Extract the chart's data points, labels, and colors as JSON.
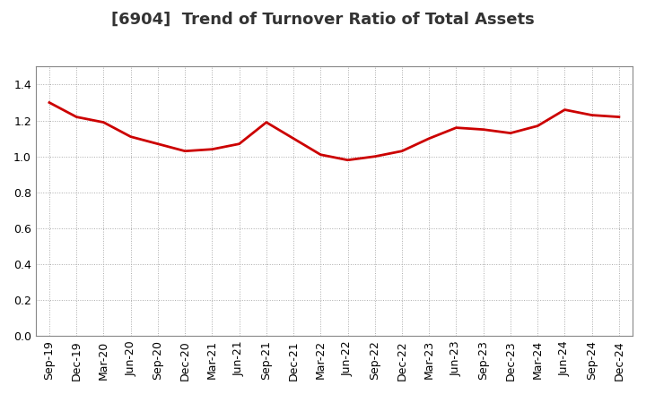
{
  "title": "[6904]  Trend of Turnover Ratio of Total Assets",
  "x_labels": [
    "Sep-19",
    "Dec-19",
    "Mar-20",
    "Jun-20",
    "Sep-20",
    "Dec-20",
    "Mar-21",
    "Jun-21",
    "Sep-21",
    "Dec-21",
    "Mar-22",
    "Jun-22",
    "Sep-22",
    "Dec-22",
    "Mar-23",
    "Jun-23",
    "Sep-23",
    "Dec-23",
    "Mar-24",
    "Jun-24",
    "Sep-24",
    "Dec-24"
  ],
  "y_values": [
    1.3,
    1.22,
    1.19,
    1.11,
    1.07,
    1.03,
    1.04,
    1.07,
    1.19,
    1.1,
    1.01,
    0.98,
    1.0,
    1.03,
    1.1,
    1.16,
    1.15,
    1.13,
    1.17,
    1.26,
    1.23,
    1.22
  ],
  "line_color": "#cc0000",
  "line_width": 2.0,
  "ylim": [
    0.0,
    1.5
  ],
  "yticks": [
    0.0,
    0.2,
    0.4,
    0.6,
    0.8,
    1.0,
    1.2,
    1.4
  ],
  "bg_color": "#ffffff",
  "plot_bg_color": "#ffffff",
  "grid_color": "#aaaaaa",
  "title_fontsize": 13,
  "tick_fontsize": 9,
  "title_color": "#333333"
}
